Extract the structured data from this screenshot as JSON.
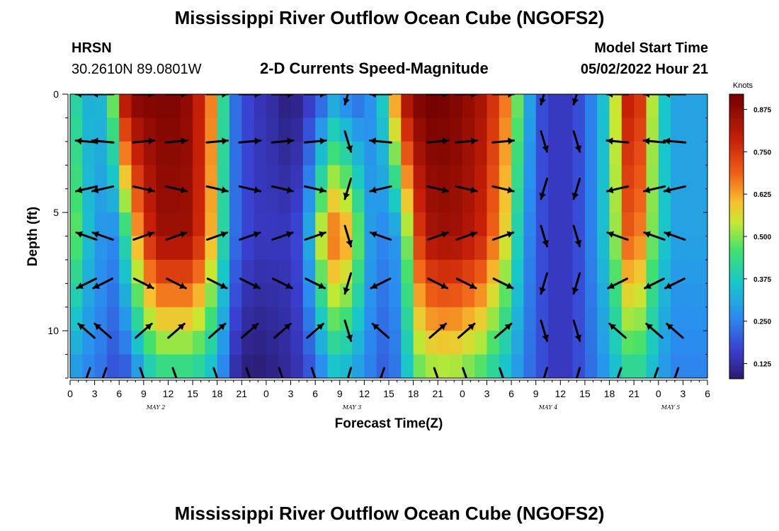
{
  "page": {
    "title": "Mississippi River Outflow Ocean Cube (NGOFS2)",
    "footer_title": "Mississippi River Outflow Ocean Cube (NGOFS2)",
    "station_name": "HRSN",
    "station_coords": "30.2610N  89.0801W",
    "subtitle": "2-D Currents Speed-Magnitude",
    "model_start_label": "Model Start Time",
    "model_start_value": "05/02/2022 Hour 21"
  },
  "chart_data": {
    "type": "heatmap",
    "title": "2-D Currents Speed-Magnitude",
    "xlabel": "Forecast Time(Z)",
    "ylabel": "Depth (ft)",
    "xlim_hours": [
      0,
      78
    ],
    "ylim": [
      0,
      12
    ],
    "y_ticks": [
      0,
      5,
      10
    ],
    "x_tick_labels": [
      "0",
      "3",
      "6",
      "9",
      "12",
      "15",
      "18",
      "21",
      "0",
      "3",
      "6",
      "9",
      "12",
      "15",
      "18",
      "21",
      "0",
      "3",
      "6",
      "9",
      "12",
      "15",
      "18",
      "21",
      "0",
      "3",
      "6"
    ],
    "day_labels": [
      {
        "text": "MAY 2",
        "hour": 10.5
      },
      {
        "text": "MAY 3",
        "hour": 34.5
      },
      {
        "text": "MAY 4",
        "hour": 58.5
      },
      {
        "text": "MAY 5",
        "hour": 73.5
      }
    ],
    "colorbar": {
      "unit": "Knots",
      "range": [
        0.08,
        0.92
      ],
      "ticks": [
        "0.125",
        "0.250",
        "0.375",
        "0.500",
        "0.625",
        "0.750",
        "0.875"
      ],
      "tick_values": [
        0.125,
        0.25,
        0.375,
        0.5,
        0.625,
        0.75,
        0.875
      ]
    },
    "speed_model": {
      "depths": [
        0,
        2,
        4,
        6,
        8,
        10,
        12
      ],
      "hours": [
        0,
        1.5,
        3,
        5,
        6,
        8,
        10.5,
        13.5,
        15,
        17,
        19.5,
        20.5,
        22.5,
        25,
        27,
        28.5,
        31,
        32.5,
        34.5,
        36.5,
        38.5,
        40.5,
        42,
        44.5,
        47,
        50,
        53,
        55.5,
        57,
        59,
        61,
        63,
        66,
        68,
        70,
        72,
        74,
        76,
        78
      ],
      "speed_surface": [
        0.45,
        0.35,
        0.3,
        0.4,
        0.8,
        0.9,
        0.9,
        0.9,
        0.85,
        0.7,
        0.3,
        0.2,
        0.15,
        0.12,
        0.08,
        0.12,
        0.2,
        0.3,
        0.2,
        0.25,
        0.4,
        0.8,
        0.9,
        0.92,
        0.9,
        0.85,
        0.7,
        0.4,
        0.2,
        0.15,
        0.15,
        0.2,
        0.4,
        0.8,
        0.75,
        0.4,
        0.3,
        0.3,
        0.3
      ],
      "speed_mid": [
        0.55,
        0.4,
        0.3,
        0.25,
        0.3,
        0.6,
        0.85,
        0.85,
        0.85,
        0.65,
        0.3,
        0.2,
        0.15,
        0.15,
        0.15,
        0.2,
        0.6,
        0.7,
        0.6,
        0.3,
        0.25,
        0.3,
        0.7,
        0.85,
        0.85,
        0.8,
        0.6,
        0.3,
        0.2,
        0.15,
        0.15,
        0.2,
        0.4,
        0.7,
        0.65,
        0.4,
        0.3,
        0.3,
        0.3
      ],
      "speed_bottom": [
        0.3,
        0.25,
        0.25,
        0.2,
        0.15,
        0.25,
        0.4,
        0.4,
        0.4,
        0.35,
        0.2,
        0.1,
        0.08,
        0.1,
        0.12,
        0.15,
        0.25,
        0.35,
        0.3,
        0.25,
        0.2,
        0.25,
        0.45,
        0.5,
        0.5,
        0.45,
        0.35,
        0.25,
        0.2,
        0.15,
        0.15,
        0.2,
        0.3,
        0.4,
        0.4,
        0.3,
        0.25,
        0.25,
        0.25
      ]
    },
    "arrow_hours": [
      2,
      4,
      9,
      13,
      18,
      22,
      26,
      30,
      34,
      38,
      45,
      48.5,
      53,
      58,
      62,
      67,
      71.5,
      74
    ],
    "arrow_depths": [
      0,
      2,
      4,
      6,
      8,
      10,
      12
    ],
    "arrow_dir": [
      -1,
      -1,
      1,
      1,
      1,
      1,
      1,
      1,
      0,
      -1,
      1,
      1,
      1,
      0,
      0,
      -1,
      -1,
      -1
    ],
    "arrow_angle_profile": [
      0,
      10,
      25,
      35,
      45,
      60,
      80
    ]
  }
}
